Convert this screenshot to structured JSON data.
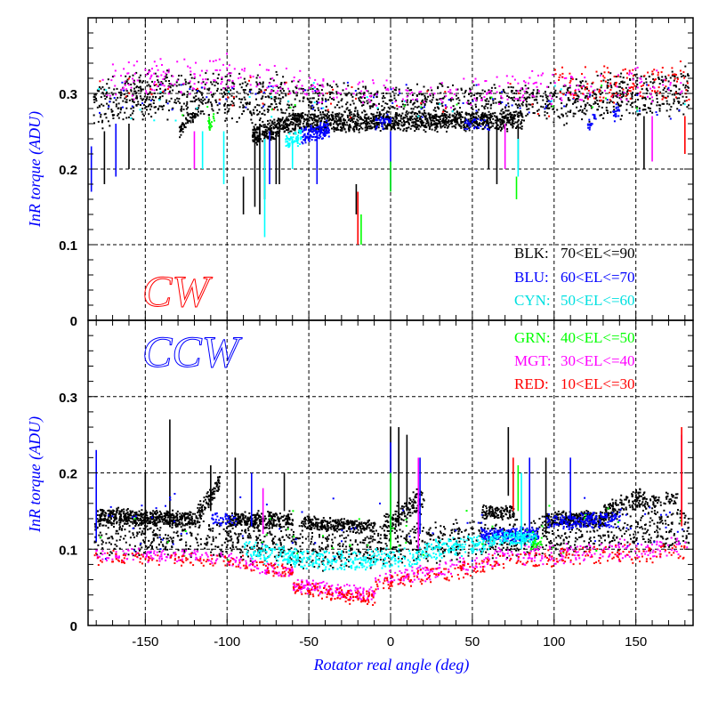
{
  "chart_data": {
    "type": "scatter",
    "xlabel": "Rotator real angle (deg)",
    "ylabel": "InR torque (ADU)",
    "xlim": [
      -185,
      185
    ],
    "x_ticks": [
      -150,
      -100,
      -50,
      0,
      50,
      100,
      150
    ],
    "x_tick_labels": [
      "-150",
      "-100",
      "-50",
      "0",
      "50",
      "100",
      "150"
    ],
    "y_ticks": [
      0,
      0.1,
      0.2,
      0.3
    ],
    "y_tick_labels": [
      "0",
      "0.1",
      "0.2",
      "0.3"
    ],
    "grid": true,
    "legend_placement": "right",
    "legend": [
      {
        "code": "BLK:",
        "range": "70<EL<=90",
        "color": "#000000"
      },
      {
        "code": "BLU:",
        "range": "60<EL<=70",
        "color": "#0000ff"
      },
      {
        "code": "CYN:",
        "range": "50<EL<=60",
        "color": "#00e0e0"
      },
      {
        "code": "GRN:",
        "range": "40<EL<=50",
        "color": "#00ff00"
      },
      {
        "code": "MGT:",
        "range": "30<EL<=40",
        "color": "#ff00ff"
      },
      {
        "code": "RED:",
        "range": "10<EL<=30",
        "color": "#ff0000"
      }
    ],
    "panels": [
      {
        "label": "CW",
        "label_color": "#ff0000",
        "ylim": [
          0,
          0.4
        ],
        "series": [
          {
            "name": "BLK",
            "color": "#000000",
            "bands": [
              [
                -182,
                -150,
                0.285,
                0.3,
                0.035,
                180
              ],
              [
                -150,
                -60,
                0.3,
                0.295,
                0.035,
                420
              ],
              [
                -60,
                0,
                0.29,
                0.285,
                0.03,
                260
              ],
              [
                0,
                100,
                0.285,
                0.29,
                0.03,
                420
              ],
              [
                100,
                182,
                0.29,
                0.305,
                0.035,
                360
              ],
              [
                -85,
                -55,
                0.245,
                0.265,
                0.015,
                300
              ],
              [
                -55,
                80,
                0.262,
                0.265,
                0.014,
                1000
              ],
              [
                -130,
                -118,
                0.25,
                0.28,
                0.01,
                60
              ]
            ],
            "spikes": [
              [
                -175,
                0.18,
                0.25
              ],
              [
                -160,
                0.2,
                0.26
              ],
              [
                -83,
                0.15,
                0.25
              ],
              [
                -80,
                0.14,
                0.26
              ],
              [
                -77,
                0.16,
                0.25
              ],
              [
                -70,
                0.18,
                0.25
              ],
              [
                -68,
                0.18,
                0.26
              ],
              [
                60,
                0.2,
                0.26
              ],
              [
                65,
                0.18,
                0.27
              ],
              [
                78,
                0.2,
                0.26
              ],
              [
                155,
                0.2,
                0.27
              ],
              [
                -90,
                0.14,
                0.19
              ],
              [
                -21,
                0.14,
                0.18
              ]
            ]
          },
          {
            "name": "BLU",
            "color": "#0000ff",
            "bands": [
              [
                -180,
                180,
                0.3,
                0.29,
                0.03,
                80
              ],
              [
                -55,
                -38,
                0.245,
                0.255,
                0.012,
                140
              ],
              [
                -10,
                0,
                0.26,
                0.265,
                0.01,
                30
              ],
              [
                45,
                60,
                0.26,
                0.26,
                0.01,
                30
              ],
              [
                120,
                125,
                0.26,
                0.27,
                0.01,
                20
              ],
              [
                135,
                140,
                0.27,
                0.28,
                0.01,
                20
              ]
            ],
            "spikes": [
              [
                -168,
                0.19,
                0.26
              ],
              [
                -74,
                0.18,
                0.25
              ],
              [
                -45,
                0.18,
                0.25
              ],
              [
                0,
                0.17,
                0.25
              ],
              [
                -183,
                0.17,
                0.23
              ]
            ]
          },
          {
            "name": "CYN",
            "color": "#00ffff",
            "bands": [
              [
                -65,
                -55,
                0.235,
                0.245,
                0.012,
                60
              ],
              [
                -180,
                180,
                0.29,
                0.29,
                0.03,
                30
              ]
            ],
            "spikes": [
              [
                -77,
                0.11,
                0.24
              ],
              [
                -115,
                0.2,
                0.25
              ],
              [
                -102,
                0.18,
                0.25
              ],
              [
                -60,
                0.2,
                0.24
              ],
              [
                78,
                0.19,
                0.24
              ]
            ]
          },
          {
            "name": "GRN",
            "color": "#00ff00",
            "bands": [
              [
                -112,
                -108,
                0.26,
                0.27,
                0.01,
                20
              ],
              [
                -180,
                180,
                0.29,
                0.29,
                0.03,
                15
              ]
            ],
            "spikes": [
              [
                0,
                0.17,
                0.21
              ],
              [
                77,
                0.16,
                0.19
              ],
              [
                -18,
                0.1,
                0.14
              ]
            ]
          },
          {
            "name": "MGT",
            "color": "#ff00ff",
            "bands": [
              [
                -178,
                -100,
                0.32,
                0.33,
                0.03,
                110
              ],
              [
                -100,
                -40,
                0.325,
                0.31,
                0.025,
                70
              ],
              [
                -40,
                40,
                0.305,
                0.3,
                0.02,
                60
              ],
              [
                40,
                180,
                0.305,
                0.315,
                0.025,
                130
              ]
            ],
            "spikes": [
              [
                70,
                0.2,
                0.26
              ],
              [
                160,
                0.21,
                0.27
              ],
              [
                -120,
                0.2,
                0.25
              ]
            ]
          },
          {
            "name": "RED",
            "color": "#ff0000",
            "bands": [
              [
                -180,
                100,
                0.3,
                0.29,
                0.03,
                40
              ],
              [
                100,
                182,
                0.31,
                0.315,
                0.03,
                130
              ]
            ],
            "spikes": [
              [
                -20,
                0.1,
                0.17
              ],
              [
                180,
                0.22,
                0.27
              ]
            ]
          }
        ]
      },
      {
        "label": "CCW",
        "label_color": "#0000ff",
        "ylim": [
          0,
          0.4
        ],
        "series": [
          {
            "name": "BLK",
            "color": "#000000",
            "bands": [
              [
                -182,
                -100,
                0.12,
                0.115,
                0.03,
                300
              ],
              [
                -100,
                -40,
                0.115,
                0.1,
                0.03,
                250
              ],
              [
                -40,
                20,
                0.1,
                0.11,
                0.03,
                250
              ],
              [
                20,
                100,
                0.11,
                0.12,
                0.03,
                300
              ],
              [
                100,
                182,
                0.12,
                0.13,
                0.03,
                300
              ],
              [
                -180,
                -120,
                0.145,
                0.14,
                0.012,
                500
              ],
              [
                -120,
                -105,
                0.14,
                0.19,
                0.015,
                100
              ],
              [
                -100,
                -60,
                0.14,
                0.14,
                0.012,
                300
              ],
              [
                -55,
                -10,
                0.135,
                0.13,
                0.01,
                300
              ],
              [
                -5,
                20,
                0.13,
                0.17,
                0.02,
                150
              ],
              [
                55,
                75,
                0.15,
                0.15,
                0.01,
                120
              ],
              [
                95,
                130,
                0.14,
                0.14,
                0.012,
                250
              ],
              [
                130,
                155,
                0.15,
                0.17,
                0.015,
                150
              ],
              [
                155,
                175,
                0.16,
                0.17,
                0.01,
                60
              ]
            ],
            "spikes": [
              [
                0,
                0.11,
                0.26
              ],
              [
                5,
                0.13,
                0.26
              ],
              [
                10,
                0.15,
                0.25
              ],
              [
                -150,
                0.12,
                0.2
              ],
              [
                -135,
                0.13,
                0.27
              ],
              [
                -110,
                0.15,
                0.21
              ],
              [
                -65,
                0.15,
                0.2
              ],
              [
                72,
                0.17,
                0.26
              ],
              [
                95,
                0.12,
                0.22
              ],
              [
                -95,
                0.14,
                0.22
              ]
            ]
          },
          {
            "name": "BLU",
            "color": "#0000ff",
            "bands": [
              [
                55,
                90,
                0.12,
                0.12,
                0.01,
                250
              ],
              [
                95,
                140,
                0.135,
                0.14,
                0.012,
                200
              ],
              [
                -110,
                -95,
                0.14,
                0.14,
                0.01,
                40
              ],
              [
                -180,
                180,
                0.13,
                0.13,
                0.05,
                80
              ]
            ],
            "spikes": [
              [
                0,
                0.12,
                0.24
              ],
              [
                18,
                0.12,
                0.22
              ],
              [
                -85,
                0.13,
                0.2
              ],
              [
                -180,
                0.11,
                0.23
              ],
              [
                85,
                0.12,
                0.22
              ],
              [
                110,
                0.14,
                0.22
              ]
            ]
          },
          {
            "name": "CYN",
            "color": "#00ffff",
            "bands": [
              [
                -90,
                -40,
                0.1,
                0.085,
                0.015,
                200
              ],
              [
                -40,
                20,
                0.085,
                0.09,
                0.015,
                200
              ],
              [
                20,
                60,
                0.1,
                0.11,
                0.015,
                150
              ],
              [
                60,
                90,
                0.115,
                0.115,
                0.01,
                150
              ]
            ],
            "spikes": [
              [
                80,
                0.1,
                0.2
              ]
            ]
          },
          {
            "name": "GRN",
            "color": "#00ff00",
            "bands": [
              [
                -180,
                180,
                0.12,
                0.13,
                0.04,
                40
              ],
              [
                85,
                92,
                0.105,
                0.11,
                0.01,
                30
              ]
            ],
            "spikes": [
              [
                0,
                0.1,
                0.2
              ],
              [
                78,
                0.15,
                0.21
              ]
            ]
          },
          {
            "name": "MGT",
            "color": "#ff00ff",
            "bands": [
              [
                -182,
                -100,
                0.095,
                0.09,
                0.01,
                120
              ],
              [
                -100,
                -60,
                0.09,
                0.07,
                0.012,
                80
              ],
              [
                -60,
                -10,
                0.055,
                0.04,
                0.012,
                150
              ],
              [
                -10,
                60,
                0.06,
                0.085,
                0.012,
                130
              ],
              [
                60,
                182,
                0.09,
                0.105,
                0.015,
                200
              ]
            ],
            "spikes": [
              [
                17,
                0.1,
                0.22
              ],
              [
                -78,
                0.12,
                0.18
              ],
              [
                178,
                0.14,
                0.25
              ]
            ]
          },
          {
            "name": "RED",
            "color": "#ff0000",
            "bands": [
              [
                -182,
                -100,
                0.09,
                0.085,
                0.01,
                80
              ],
              [
                -100,
                -60,
                0.085,
                0.07,
                0.012,
                60
              ],
              [
                -60,
                -10,
                0.05,
                0.035,
                0.012,
                120
              ],
              [
                -10,
                60,
                0.055,
                0.08,
                0.012,
                110
              ],
              [
                60,
                182,
                0.085,
                0.1,
                0.015,
                150
              ]
            ],
            "spikes": [
              [
                178,
                0.13,
                0.26
              ],
              [
                75,
                0.15,
                0.22
              ]
            ]
          }
        ]
      }
    ]
  }
}
